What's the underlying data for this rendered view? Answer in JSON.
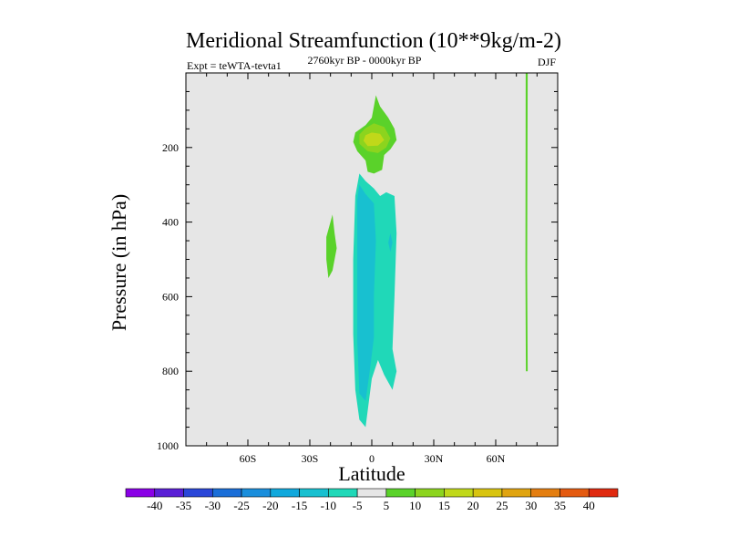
{
  "chart_data": {
    "type": "contour",
    "title": "Meridional Streamfunction (10**9kg/m-2)",
    "subtitle_left": "Expt = teWTA-tevta1",
    "subtitle_center": "2760kyr BP - 0000kyr BP",
    "subtitle_right": "DJF",
    "xlabel": "Latitude",
    "ylabel": "Pressure (in hPa)",
    "xlim": [
      -90,
      90
    ],
    "ylim": [
      1000,
      0
    ],
    "x_ticks": [
      -60,
      -30,
      0,
      30,
      60
    ],
    "x_tick_labels": [
      "60S",
      "30S",
      "0",
      "30N",
      "60N"
    ],
    "y_ticks": [
      200,
      400,
      600,
      800,
      1000
    ],
    "y_tick_labels": [
      "200",
      "400",
      "600",
      "800",
      "1000"
    ],
    "background_color": "#e6e6e6",
    "colorbar": {
      "labels": [
        "-40",
        "-35",
        "-30",
        "-25",
        "-20",
        "-15",
        "-10",
        "-5",
        "5",
        "10",
        "15",
        "20",
        "25",
        "30",
        "35",
        "40"
      ],
      "colors": [
        "#8a00e6",
        "#5a1fd6",
        "#2a46d8",
        "#1a6ed8",
        "#1a8edc",
        "#10a8dc",
        "#18c0d0",
        "#20d8b8",
        "#e6e6e6",
        "#5ad22a",
        "#8cd41e",
        "#c0d81a",
        "#d8c410",
        "#e0a410",
        "#e47e10",
        "#e45a10",
        "#e02a10"
      ]
    },
    "regions": [
      {
        "name": "positive-5-10-upper-lobe",
        "fill": "#5ad22a",
        "points": [
          [
            2,
            60
          ],
          [
            4,
            90
          ],
          [
            8,
            120
          ],
          [
            11,
            150
          ],
          [
            12,
            180
          ],
          [
            9,
            205
          ],
          [
            6,
            220
          ],
          [
            5,
            260
          ],
          [
            1,
            270
          ],
          [
            -2,
            265
          ],
          [
            -3,
            235
          ],
          [
            -7,
            210
          ],
          [
            -9,
            185
          ],
          [
            -8,
            160
          ],
          [
            -3,
            140
          ],
          [
            0,
            120
          ],
          [
            1,
            90
          ]
        ]
      },
      {
        "name": "positive-10-15-upper-core",
        "fill": "#8cd41e",
        "points": [
          [
            1,
            135
          ],
          [
            6,
            145
          ],
          [
            9,
            175
          ],
          [
            7,
            200
          ],
          [
            3,
            215
          ],
          [
            -2,
            210
          ],
          [
            -6,
            190
          ],
          [
            -6,
            165
          ],
          [
            -3,
            148
          ]
        ]
      },
      {
        "name": "positive-15-20-upper-max",
        "fill": "#c0d81a",
        "points": [
          [
            0,
            160
          ],
          [
            4,
            163
          ],
          [
            6,
            180
          ],
          [
            3,
            195
          ],
          [
            -2,
            196
          ],
          [
            -4,
            182
          ],
          [
            -3,
            167
          ]
        ]
      },
      {
        "name": "positive-5-10-south-sliver",
        "fill": "#5ad22a",
        "points": [
          [
            -19,
            380
          ],
          [
            -18,
            430
          ],
          [
            -17,
            470
          ],
          [
            -19,
            530
          ],
          [
            -21,
            550
          ],
          [
            -22,
            500
          ],
          [
            -22,
            440
          ]
        ]
      },
      {
        "name": "positive-5-10-north-line",
        "fill": "#5ad22a",
        "points": [
          [
            74.5,
            0
          ],
          [
            75.5,
            0
          ],
          [
            75.2,
            530
          ],
          [
            75.5,
            800
          ],
          [
            74.6,
            800
          ],
          [
            74.4,
            520
          ]
        ]
      },
      {
        "name": "negative-5-10-column",
        "fill": "#20d8b8",
        "points": [
          [
            -6,
            270
          ],
          [
            -3,
            290
          ],
          [
            1,
            310
          ],
          [
            4,
            330
          ],
          [
            7,
            320
          ],
          [
            11,
            330
          ],
          [
            12,
            430
          ],
          [
            11,
            600
          ],
          [
            10,
            740
          ],
          [
            12,
            800
          ],
          [
            10,
            850
          ],
          [
            6,
            810
          ],
          [
            3,
            770
          ],
          [
            0,
            820
          ],
          [
            -3,
            950
          ],
          [
            -6,
            930
          ],
          [
            -8,
            850
          ],
          [
            -9,
            700
          ],
          [
            -9,
            500
          ],
          [
            -8,
            330
          ]
        ]
      },
      {
        "name": "negative-10-15-core",
        "fill": "#18c0d0",
        "points": [
          [
            -6,
            300
          ],
          [
            -3,
            325
          ],
          [
            1,
            350
          ],
          [
            2,
            450
          ],
          [
            1,
            600
          ],
          [
            1,
            710
          ],
          [
            -1,
            800
          ],
          [
            -3,
            880
          ],
          [
            -6,
            860
          ],
          [
            -7,
            720
          ],
          [
            -7,
            500
          ],
          [
            -7,
            340
          ]
        ]
      },
      {
        "name": "negative-10-15-spot",
        "fill": "#18c0d0",
        "points": [
          [
            9,
            430
          ],
          [
            10,
            455
          ],
          [
            9,
            480
          ],
          [
            8,
            455
          ]
        ]
      }
    ]
  }
}
